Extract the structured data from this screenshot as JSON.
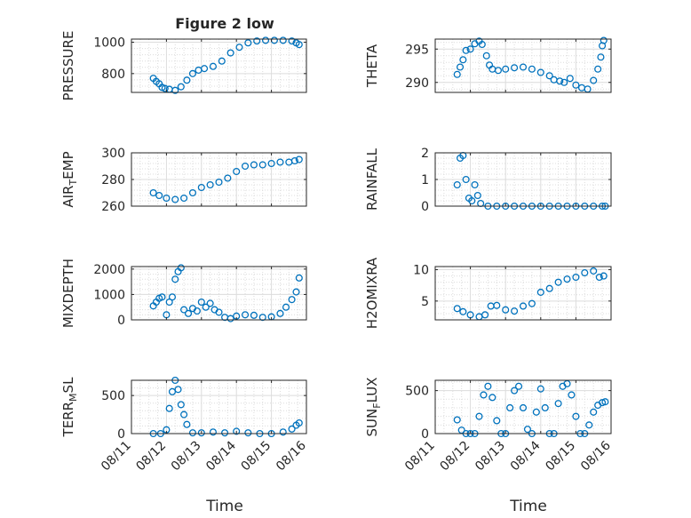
{
  "figure": {
    "title": "Figure 2 low",
    "xlabel": "Time",
    "marker_color": "#0072BD",
    "grid_color": "#dcdcdc",
    "axis_color": "#262626",
    "x_ticks": [
      "08/11",
      "08/12",
      "08/13",
      "08/14",
      "08/15",
      "08/16"
    ]
  },
  "chart_data": [
    {
      "type": "scatter",
      "ylabel": "PRESSURE",
      "xlim": [
        "08/11",
        "08/16"
      ],
      "ylim": [
        680,
        1020
      ],
      "yticks": [
        800,
        1000
      ],
      "grid": true,
      "x": [
        "08/11 15:00",
        "08/11 17:00",
        "08/11 19:00",
        "08/11 21:00",
        "08/11 23:00",
        "08/12 02:00",
        "08/12 06:00",
        "08/12 10:00",
        "08/12 14:00",
        "08/12 18:00",
        "08/12 22:00",
        "08/13 02:00",
        "08/13 08:00",
        "08/13 14:00",
        "08/13 20:00",
        "08/14 02:00",
        "08/14 08:00",
        "08/14 14:00",
        "08/14 20:00",
        "08/15 02:00",
        "08/15 08:00",
        "08/15 14:00",
        "08/15 17:00",
        "08/15 19:00"
      ],
      "y": [
        770,
        750,
        735,
        712,
        705,
        700,
        693,
        716,
        758,
        800,
        822,
        832,
        846,
        880,
        932,
        968,
        996,
        1008,
        1012,
        1012,
        1012,
        1008,
        996,
        985
      ]
    },
    {
      "type": "scatter",
      "ylabel": "THETA",
      "xlim": [
        "08/11",
        "08/16"
      ],
      "ylim": [
        288.5,
        296.5
      ],
      "yticks": [
        290,
        295
      ],
      "grid": true,
      "x": [
        "08/11 15:00",
        "08/11 17:00",
        "08/11 19:00",
        "08/11 21:00",
        "08/12 00:00",
        "08/12 03:00",
        "08/12 06:00",
        "08/12 08:00",
        "08/12 11:00",
        "08/12 13:00",
        "08/12 15:00",
        "08/12 19:00",
        "08/13 00:00",
        "08/13 06:00",
        "08/13 12:00",
        "08/13 18:00",
        "08/14 00:00",
        "08/14 06:00",
        "08/14 09:00",
        "08/14 13:00",
        "08/14 16:00",
        "08/14 20:00",
        "08/15 00:00",
        "08/15 04:00",
        "08/15 08:00",
        "08/15 12:00",
        "08/15 15:00",
        "08/15 17:00",
        "08/15 18:00",
        "08/15 19:00"
      ],
      "y": [
        291.2,
        292.3,
        293.4,
        294.8,
        295.0,
        295.8,
        296.2,
        295.7,
        294.0,
        292.6,
        292.0,
        291.8,
        292.0,
        292.2,
        292.3,
        292.0,
        291.5,
        291.0,
        290.4,
        290.2,
        290.0,
        290.6,
        289.6,
        289.2,
        289.0,
        290.3,
        292.0,
        293.8,
        295.5,
        296.3
      ]
    },
    {
      "type": "scatter",
      "ylabel": "AIR_TEMP",
      "xlim": [
        "08/11",
        "08/16"
      ],
      "ylim": [
        260,
        300
      ],
      "yticks": [
        260,
        280,
        300
      ],
      "grid": true,
      "x": [
        "08/11 15:00",
        "08/11 19:00",
        "08/12 00:00",
        "08/12 06:00",
        "08/12 12:00",
        "08/12 18:00",
        "08/13 00:00",
        "08/13 06:00",
        "08/13 12:00",
        "08/13 18:00",
        "08/14 00:00",
        "08/14 06:00",
        "08/14 12:00",
        "08/14 18:00",
        "08/15 00:00",
        "08/15 06:00",
        "08/15 12:00",
        "08/15 16:00",
        "08/15 19:00"
      ],
      "y": [
        270,
        268,
        266,
        265,
        266,
        270,
        274,
        276,
        278,
        281,
        286,
        290,
        291,
        291,
        292,
        293,
        293,
        294,
        295
      ]
    },
    {
      "type": "scatter",
      "ylabel": "RAINFALL",
      "xlim": [
        "08/11",
        "08/16"
      ],
      "ylim": [
        0,
        2
      ],
      "yticks": [
        0,
        1,
        2
      ],
      "grid": true,
      "x": [
        "08/11 15:00",
        "08/11 17:00",
        "08/11 19:00",
        "08/11 21:00",
        "08/11 23:00",
        "08/12 01:00",
        "08/12 03:00",
        "08/12 05:00",
        "08/12 07:00",
        "08/12 12:00",
        "08/12 18:00",
        "08/13 00:00",
        "08/13 06:00",
        "08/13 12:00",
        "08/13 18:00",
        "08/14 00:00",
        "08/14 06:00",
        "08/14 12:00",
        "08/14 18:00",
        "08/15 00:00",
        "08/15 06:00",
        "08/15 12:00",
        "08/15 18:00",
        "08/15 20:00"
      ],
      "y": [
        0.8,
        1.8,
        1.9,
        1.0,
        0.3,
        0.2,
        0.8,
        0.4,
        0.1,
        0,
        0,
        0,
        0,
        0,
        0,
        0,
        0,
        0,
        0,
        0,
        0,
        0,
        0,
        0
      ]
    },
    {
      "type": "scatter",
      "ylabel": "MIXDEPTH",
      "xlim": [
        "08/11",
        "08/16"
      ],
      "ylim": [
        0,
        2100
      ],
      "yticks": [
        0,
        1000,
        2000
      ],
      "grid": true,
      "x": [
        "08/11 15:00",
        "08/11 17:00",
        "08/11 19:00",
        "08/11 21:00",
        "08/12 00:00",
        "08/12 02:00",
        "08/12 04:00",
        "08/12 06:00",
        "08/12 08:00",
        "08/12 10:00",
        "08/12 12:00",
        "08/12 15:00",
        "08/12 18:00",
        "08/12 21:00",
        "08/13 00:00",
        "08/13 03:00",
        "08/13 06:00",
        "08/13 09:00",
        "08/13 12:00",
        "08/13 16:00",
        "08/13 20:00",
        "08/14 00:00",
        "08/14 06:00",
        "08/14 12:00",
        "08/14 18:00",
        "08/15 00:00",
        "08/15 06:00",
        "08/15 10:00",
        "08/15 14:00",
        "08/15 17:00",
        "08/15 19:00"
      ],
      "y": [
        550,
        700,
        850,
        900,
        200,
        700,
        900,
        1600,
        1900,
        2050,
        400,
        250,
        450,
        350,
        700,
        500,
        650,
        400,
        300,
        100,
        50,
        150,
        200,
        180,
        100,
        120,
        250,
        500,
        800,
        1100,
        1650
      ]
    },
    {
      "type": "scatter",
      "ylabel": "H2OMIXRA",
      "xlim": [
        "08/11",
        "08/16"
      ],
      "ylim": [
        2,
        10.5
      ],
      "yticks": [
        5,
        10
      ],
      "grid": true,
      "x": [
        "08/11 15:00",
        "08/11 19:00",
        "08/12 00:00",
        "08/12 06:00",
        "08/12 10:00",
        "08/12 14:00",
        "08/12 18:00",
        "08/13 00:00",
        "08/13 06:00",
        "08/13 12:00",
        "08/13 18:00",
        "08/14 00:00",
        "08/14 06:00",
        "08/14 12:00",
        "08/14 18:00",
        "08/15 00:00",
        "08/15 06:00",
        "08/15 12:00",
        "08/15 16:00",
        "08/15 19:00"
      ],
      "y": [
        3.8,
        3.3,
        2.8,
        2.5,
        2.8,
        4.2,
        4.3,
        3.6,
        3.4,
        4.2,
        4.6,
        6.4,
        7.0,
        8.0,
        8.5,
        8.8,
        9.5,
        9.8,
        8.8,
        9.0
      ]
    },
    {
      "type": "scatter",
      "ylabel": "TERR_MSL",
      "xlim": [
        "08/11",
        "08/16"
      ],
      "ylim": [
        0,
        700
      ],
      "yticks": [
        0,
        500
      ],
      "grid": true,
      "x": [
        "08/11 15:00",
        "08/11 20:00",
        "08/12 00:00",
        "08/12 02:00",
        "08/12 04:00",
        "08/12 06:00",
        "08/12 08:00",
        "08/12 10:00",
        "08/12 12:00",
        "08/12 14:00",
        "08/12 18:00",
        "08/13 00:00",
        "08/13 08:00",
        "08/13 16:00",
        "08/14 00:00",
        "08/14 08:00",
        "08/14 16:00",
        "08/15 00:00",
        "08/15 08:00",
        "08/15 14:00",
        "08/15 17:00",
        "08/15 19:00"
      ],
      "y": [
        0,
        0,
        50,
        330,
        550,
        700,
        580,
        380,
        250,
        120,
        10,
        10,
        20,
        10,
        30,
        10,
        0,
        0,
        20,
        60,
        110,
        140
      ]
    },
    {
      "type": "scatter",
      "ylabel": "SUN_FLUX",
      "xlim": [
        "08/11",
        "08/16"
      ],
      "ylim": [
        0,
        620
      ],
      "yticks": [
        0,
        500
      ],
      "grid": true,
      "x": [
        "08/11 15:00",
        "08/11 18:00",
        "08/11 21:00",
        "08/12 00:00",
        "08/12 03:00",
        "08/12 06:00",
        "08/12 09:00",
        "08/12 12:00",
        "08/12 15:00",
        "08/12 18:00",
        "08/12 21:00",
        "08/13 00:00",
        "08/13 03:00",
        "08/13 06:00",
        "08/13 09:00",
        "08/13 12:00",
        "08/13 15:00",
        "08/13 18:00",
        "08/13 21:00",
        "08/14 00:00",
        "08/14 03:00",
        "08/14 06:00",
        "08/14 09:00",
        "08/14 12:00",
        "08/14 15:00",
        "08/14 18:00",
        "08/14 21:00",
        "08/15 00:00",
        "08/15 03:00",
        "08/15 06:00",
        "08/15 09:00",
        "08/15 12:00",
        "08/15 15:00",
        "08/15 18:00",
        "08/15 20:00"
      ],
      "y": [
        160,
        40,
        0,
        0,
        0,
        200,
        450,
        550,
        420,
        150,
        0,
        0,
        300,
        500,
        550,
        300,
        50,
        0,
        250,
        520,
        300,
        0,
        0,
        350,
        550,
        580,
        450,
        200,
        0,
        0,
        100,
        250,
        330,
        360,
        370
      ]
    }
  ]
}
